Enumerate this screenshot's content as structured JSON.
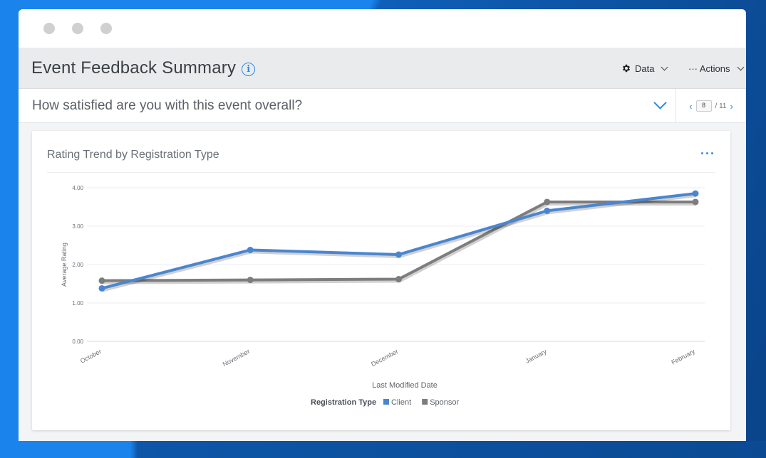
{
  "header": {
    "title": "Event Feedback Summary",
    "data_label": "Data",
    "actions_label": "··· Actions"
  },
  "question": {
    "text": "How satisfied are you with this event overall?",
    "page_current": "8",
    "page_total": "/ 11"
  },
  "card": {
    "title": "Rating Trend by Registration Type"
  },
  "colors": {
    "client": "#4a86d0",
    "sponsor": "#7d7d7d",
    "accent": "#2f8ae0"
  },
  "chart_data": {
    "type": "line",
    "title": "Rating Trend by Registration Type",
    "categories": [
      "October",
      "November",
      "December",
      "January",
      "February"
    ],
    "series": [
      {
        "name": "Client",
        "values": [
          1.38,
          2.38,
          2.26,
          3.4,
          3.85
        ]
      },
      {
        "name": "Sponsor",
        "values": [
          1.58,
          1.6,
          1.62,
          3.63,
          3.63
        ]
      }
    ],
    "xlabel": "Last Modified Date",
    "ylabel": "Average Rating",
    "ylim": [
      0,
      4
    ],
    "yticks": [
      "0.00",
      "1.00",
      "2.00",
      "3.00",
      "4.00"
    ],
    "legend_title": "Registration Type",
    "legend_position": "bottom",
    "grid": true
  }
}
